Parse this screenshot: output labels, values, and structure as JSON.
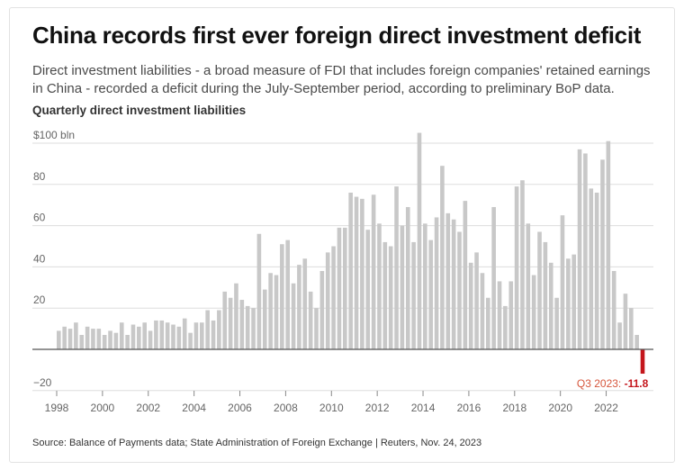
{
  "title": "China records first ever foreign direct investment deficit",
  "subtitle": "Direct investment liabilities - a broad measure of FDI that includes foreign companies' retained earnings in China - recorded a deficit during the July-September period, according to preliminary BoP data.",
  "source": "Source: Balance of Payments data; State Administration of Foreign Exchange | Reuters, Nov. 24, 2023",
  "colors": {
    "bar": "#c8c8c8",
    "negative_bar": "#c4161c",
    "annotation_label": "#d6563c",
    "grid": "#dddddd",
    "zero_line": "#555555"
  },
  "chart_data": {
    "type": "bar",
    "title": "Quarterly direct investment liabilities",
    "unit": "$ bln",
    "ylim": [
      -20,
      100
    ],
    "y_ticks": [
      -20,
      20,
      40,
      60,
      80,
      100
    ],
    "y_tick_labels": [
      "−20",
      "20",
      "40",
      "60",
      "80",
      "$100 bln"
    ],
    "x_ticks": [
      "1998",
      "2000",
      "2002",
      "2004",
      "2006",
      "2008",
      "2010",
      "2012",
      "2014",
      "2016",
      "2018",
      "2020",
      "2022"
    ],
    "grid": true,
    "start_year": 1998,
    "values": [
      9,
      11,
      10,
      13,
      7,
      11,
      10,
      10,
      7,
      9,
      8,
      13,
      7,
      12,
      11,
      13,
      9,
      14,
      14,
      13,
      12,
      11,
      15,
      8,
      13,
      13,
      19,
      14,
      19,
      28,
      25,
      32,
      24,
      21,
      20,
      56,
      29,
      37,
      36,
      51,
      53,
      32,
      41,
      44,
      28,
      20,
      38,
      47,
      50,
      59,
      59,
      76,
      74,
      73,
      58,
      75,
      61,
      52,
      50,
      79,
      60,
      69,
      52,
      105,
      61,
      53,
      64,
      89,
      66,
      63,
      57,
      72,
      42,
      47,
      37,
      25,
      69,
      33,
      21,
      33,
      79,
      82,
      61,
      36,
      57,
      52,
      42,
      25,
      65,
      44,
      46,
      97,
      95,
      78,
      76,
      92,
      101,
      38,
      13,
      27,
      20,
      7,
      -11.8
    ],
    "annotation": {
      "label": "Q3 2023: ",
      "value": "-11.8"
    }
  }
}
